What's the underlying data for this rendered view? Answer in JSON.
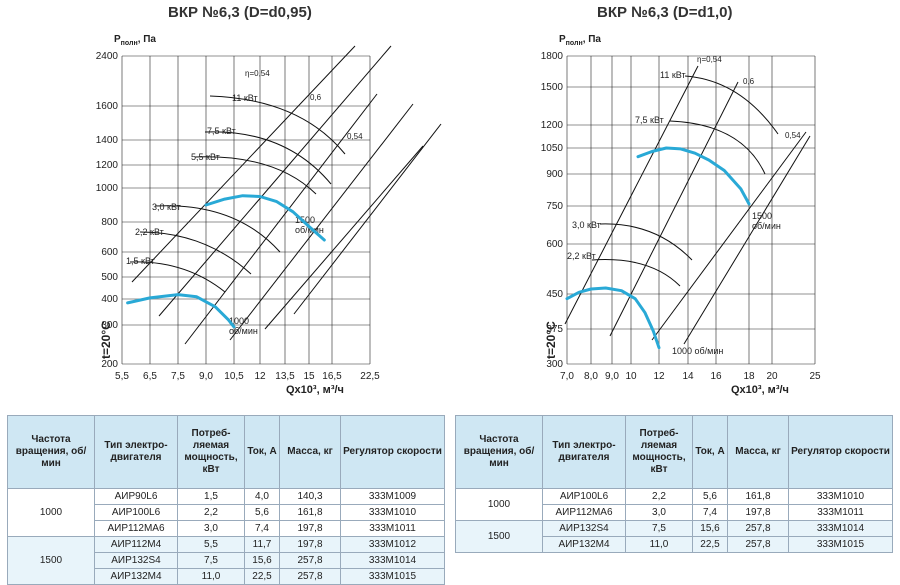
{
  "charts": [
    {
      "title": "ВКР №6,3 (D=d0,95)",
      "ylabel": "P",
      "ylabel_sub": "полн",
      "ylabel_unit": ", Па",
      "xlabel": "Qх10³, м³/ч",
      "temp_label": "t=20°C",
      "x_ticks": [
        "5,5",
        "6,5",
        "7,5",
        "9,0",
        "10,5",
        "12",
        "13,5",
        "15",
        "16,5",
        "22,5"
      ],
      "y_ticks": [
        "2400",
        "1600",
        "1400",
        "1200",
        "1000",
        "800",
        "600",
        "500",
        "400",
        "300",
        "200"
      ],
      "power_labels": [
        "11 кВт",
        "7,5 кВт",
        "5,5 кВт",
        "3,0 кВт",
        "2,2 кВт",
        "1,5 кВт"
      ],
      "eff_labels": [
        "η=0,54",
        "0,6",
        "0,54"
      ],
      "speed_labels": [
        [
          "1500",
          "об/мин"
        ],
        [
          "1000",
          "об/мин"
        ]
      ]
    },
    {
      "title": "ВКР №6,3 (D=d1,0)",
      "ylabel": "P",
      "ylabel_sub": "полн",
      "ylabel_unit": ", Па",
      "xlabel": "Qх10³, м³/ч",
      "temp_label": "t=20°C",
      "x_ticks": [
        "7,0",
        "8,0",
        "9,0",
        "10",
        "12",
        "14",
        "16",
        "18",
        "20",
        "25"
      ],
      "y_ticks": [
        "1800",
        "1500",
        "1200",
        "1050",
        "900",
        "750",
        "600",
        "450",
        "375",
        "300"
      ],
      "power_labels": [
        "11 кВт",
        "7,5 кВт",
        "3,0 кВт",
        "2,2 кВт"
      ],
      "eff_labels": [
        "η=0,54",
        "0,6",
        "0,54"
      ],
      "speed_labels": [
        [
          "1500",
          "об/мин"
        ],
        [
          "1000 об/мин"
        ]
      ]
    }
  ],
  "chart_data": [
    {
      "type": "line",
      "title": "ВКР №6,3 (D=d0,95)",
      "xlabel": "Qх10³, м³/ч",
      "ylabel": "Pполн, Па",
      "x_ticks": [
        5.5,
        6.5,
        7.5,
        9.0,
        10.5,
        12,
        13.5,
        15,
        16.5,
        22.5
      ],
      "y_ticks": [
        200,
        300,
        400,
        500,
        600,
        800,
        1000,
        1200,
        1400,
        1600,
        2400
      ],
      "series": [
        {
          "name": "1500 об/мин",
          "x": [
            9.0,
            10.0,
            11.0,
            12.0,
            13.0,
            14.0,
            15.0,
            16.0
          ],
          "y": [
            900,
            935,
            955,
            950,
            920,
            860,
            770,
            680
          ]
        },
        {
          "name": "1000 об/мин",
          "x": [
            5.7,
            6.5,
            7.5,
            8.5,
            9.5,
            10.2,
            10.5
          ],
          "y": [
            385,
            405,
            420,
            410,
            370,
            320,
            295
          ]
        }
      ]
    },
    {
      "type": "line",
      "title": "ВКР №6,3 (D=d1,0)",
      "xlabel": "Qх10³, м³/ч",
      "ylabel": "Pполн, Па",
      "x_ticks": [
        7.0,
        8.0,
        9.0,
        10,
        12,
        14,
        16,
        18,
        20,
        25
      ],
      "y_ticks": [
        300,
        375,
        450,
        600,
        750,
        900,
        1050,
        1200,
        1500,
        1800
      ],
      "series": [
        {
          "name": "1500 об/мин",
          "x": [
            10.5,
            11.5,
            12.5,
            13.5,
            14.5,
            15.5,
            16.5,
            17.5,
            18.0
          ],
          "y": [
            1000,
            1030,
            1050,
            1045,
            1020,
            980,
            920,
            830,
            760
          ]
        },
        {
          "name": "1000 об/мин",
          "x": [
            7.0,
            7.5,
            8.0,
            8.7,
            9.5,
            10.3,
            11.0,
            11.6,
            12.0
          ],
          "y": [
            440,
            455,
            465,
            468,
            460,
            440,
            410,
            370,
            335
          ]
        }
      ]
    }
  ],
  "tables": [
    {
      "headers": [
        "Частота вращения, об/мин",
        "Тип электро-двигателя",
        "Потреб-ляемая мощность, кВт",
        "Ток, А",
        "Масса, кг",
        "Регулятор скорости"
      ],
      "groups": [
        {
          "speed": "1000",
          "rows": [
            [
              "АИР90L6",
              "1,5",
              "4,0",
              "140,3",
              "333М1009"
            ],
            [
              "АИР100L6",
              "2,2",
              "5,6",
              "161,8",
              "333М1010"
            ],
            [
              "АИР112МА6",
              "3,0",
              "7,4",
              "197,8",
              "333М1011"
            ]
          ]
        },
        {
          "speed": "1500",
          "rows": [
            [
              "АИР112М4",
              "5,5",
              "11,7",
              "197,8",
              "333М1012"
            ],
            [
              "АИР132S4",
              "7,5",
              "15,6",
              "257,8",
              "333М1014"
            ],
            [
              "АИР132М4",
              "11,0",
              "22,5",
              "257,8",
              "333М1015"
            ]
          ]
        }
      ]
    },
    {
      "headers": [
        "Частота вращения, об/мин",
        "Тип электро-двигателя",
        "Потреб-ляемая мощность, кВт",
        "Ток, А",
        "Масса, кг",
        "Регулятор скорости"
      ],
      "groups": [
        {
          "speed": "1000",
          "rows": [
            [
              "АИР100L6",
              "2,2",
              "5,6",
              "161,8",
              "333М1010"
            ],
            [
              "АИР112МА6",
              "3,0",
              "7,4",
              "197,8",
              "333М1011"
            ]
          ]
        },
        {
          "speed": "1500",
          "rows": [
            [
              "АИР132S4",
              "7,5",
              "15,6",
              "257,8",
              "333М1014"
            ],
            [
              "АИР132М4",
              "11,0",
              "22,5",
              "257,8",
              "333М1015"
            ]
          ]
        }
      ]
    }
  ],
  "colors": {
    "curve": "#29a9d6",
    "grid": "#000000",
    "header_bg": "#cfe7f3",
    "band": "#e8f4fa"
  }
}
